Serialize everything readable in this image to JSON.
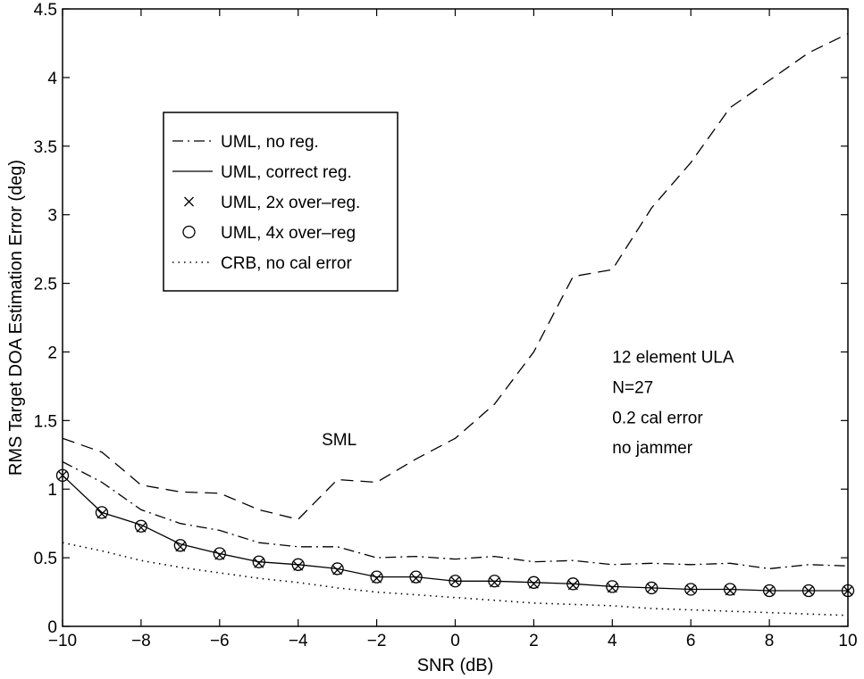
{
  "chart_data": {
    "type": "line",
    "title": "",
    "xlabel": "SNR (dB)",
    "ylabel": "RMS Target DOA Estimation Error (deg)",
    "xlim": [
      -10,
      10
    ],
    "ylim": [
      0,
      4.5
    ],
    "xticks": [
      -10,
      -8,
      -6,
      -4,
      -2,
      0,
      2,
      4,
      6,
      8,
      10
    ],
    "xtick_labels": [
      "−10",
      "−8",
      "−6",
      "−4",
      "−2",
      "0",
      "2",
      "4",
      "6",
      "8",
      "10"
    ],
    "yticks": [
      0,
      0.5,
      1,
      1.5,
      2,
      2.5,
      3,
      3.5,
      4,
      4.5
    ],
    "ytick_labels": [
      "0",
      "0.5",
      "1",
      "1.5",
      "2",
      "2.5",
      "3",
      "3.5",
      "4",
      "4.5"
    ],
    "grid": false,
    "legend_position": "upper-left",
    "x": [
      -10,
      -9,
      -8,
      -7,
      -6,
      -5,
      -4,
      -3,
      -2,
      -1,
      0,
      1,
      2,
      3,
      4,
      5,
      6,
      7,
      8,
      9,
      10
    ],
    "series": [
      {
        "name": "UML, no reg.",
        "style": "dashdot",
        "values": [
          1.2,
          1.05,
          0.85,
          0.75,
          0.7,
          0.61,
          0.58,
          0.58,
          0.5,
          0.51,
          0.49,
          0.51,
          0.47,
          0.48,
          0.45,
          0.46,
          0.45,
          0.46,
          0.42,
          0.45,
          0.44
        ]
      },
      {
        "name": "UML, correct reg.",
        "style": "solid",
        "values": [
          1.1,
          0.83,
          0.74,
          0.6,
          0.53,
          0.47,
          0.45,
          0.42,
          0.36,
          0.36,
          0.33,
          0.33,
          0.32,
          0.31,
          0.29,
          0.28,
          0.27,
          0.27,
          0.26,
          0.26,
          0.26
        ]
      },
      {
        "name": "UML, 2x over–reg.",
        "style": "marker-x",
        "values": [
          1.1,
          0.82,
          0.72,
          0.58,
          0.52,
          0.46,
          0.44,
          0.41,
          0.35,
          0.35,
          0.33,
          0.32,
          0.31,
          0.3,
          0.28,
          0.28,
          0.27,
          0.26,
          0.26,
          0.26,
          0.26
        ]
      },
      {
        "name": "UML, 4x over–reg",
        "style": "marker-o",
        "values": [
          1.1,
          0.83,
          0.73,
          0.59,
          0.53,
          0.47,
          0.45,
          0.42,
          0.36,
          0.36,
          0.33,
          0.33,
          0.32,
          0.31,
          0.29,
          0.28,
          0.27,
          0.27,
          0.26,
          0.26,
          0.26
        ]
      },
      {
        "name": "CRB, no cal error",
        "style": "dotted",
        "values": [
          0.61,
          0.55,
          0.48,
          0.43,
          0.39,
          0.35,
          0.32,
          0.28,
          0.25,
          0.23,
          0.21,
          0.19,
          0.17,
          0.16,
          0.15,
          0.13,
          0.12,
          0.11,
          0.1,
          0.09,
          0.08
        ]
      },
      {
        "name": "SML",
        "style": "dashed",
        "values": [
          1.37,
          1.27,
          1.03,
          0.98,
          0.97,
          0.85,
          0.78,
          1.07,
          1.05,
          1.22,
          1.37,
          1.62,
          2.0,
          2.55,
          2.6,
          3.05,
          3.38,
          3.78,
          3.98,
          4.18,
          4.32
        ]
      }
    ],
    "annotations": [
      {
        "text": "SML",
        "x": -3.4,
        "y": 1.32
      },
      {
        "text": "12 element ULA",
        "x": 4.0,
        "y": 1.92
      },
      {
        "text": "N=27",
        "x": 4.0,
        "y": 1.7
      },
      {
        "text": "0.2 cal error",
        "x": 4.0,
        "y": 1.48
      },
      {
        "text": "no jammer",
        "x": 4.0,
        "y": 1.26
      }
    ]
  }
}
